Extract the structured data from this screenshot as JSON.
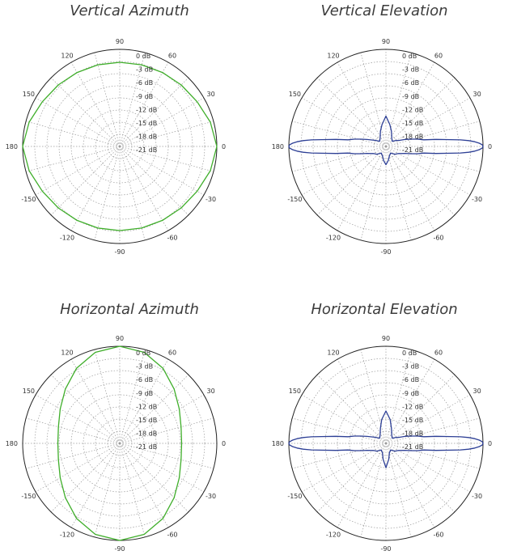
{
  "colors": {
    "azimuth_trace": "#3fae2a",
    "elevation_trace": "#2d3f95",
    "grid": "#9a9a9a",
    "outer_ring": "#222222"
  },
  "chart_data": [
    {
      "type": "polar-line",
      "title": "Vertical Azimuth",
      "angle_ticks": [
        "0",
        "30",
        "60",
        "90",
        "120",
        "150",
        "180",
        "-150",
        "-120",
        "-90",
        "-60",
        "-30"
      ],
      "angle_tick_values": [
        0,
        30,
        60,
        90,
        120,
        150,
        180,
        -150,
        -120,
        -90,
        -60,
        -30
      ],
      "radial_ticks": [
        "0 dB",
        "-3 dB",
        "-6 dB",
        "-9 dB",
        "-12 dB",
        "-15 dB",
        "-18 dB",
        "-21 dB"
      ],
      "rlim_db": [
        -24,
        0
      ],
      "grid": true,
      "series": [
        {
          "color": "#3fae2a",
          "angles_deg": [
            0,
            15,
            30,
            45,
            60,
            75,
            90,
            105,
            120,
            135,
            150,
            165,
            180,
            195,
            210,
            225,
            240,
            255,
            270,
            285,
            300,
            315,
            330,
            345
          ],
          "gain_db": [
            0,
            -0.8,
            -1.9,
            -2.5,
            -2.9,
            -3.1,
            -3.2,
            -3.1,
            -2.9,
            -2.5,
            -1.9,
            -0.8,
            0,
            -0.8,
            -1.9,
            -2.5,
            -2.9,
            -3.1,
            -3.2,
            -3.1,
            -2.9,
            -2.5,
            -1.9,
            -0.8
          ]
        }
      ]
    },
    {
      "type": "polar-line",
      "title": "Vertical Elevation",
      "angle_ticks": [
        "0",
        "30",
        "60",
        "90",
        "120",
        "150",
        "180",
        "-150",
        "-120",
        "-90",
        "-60",
        "-30"
      ],
      "angle_tick_values": [
        0,
        30,
        60,
        90,
        120,
        150,
        180,
        -150,
        -120,
        -90,
        -60,
        -30
      ],
      "radial_ticks": [
        "0 dB",
        "-3 dB",
        "-6 dB",
        "-9 dB",
        "-12 dB",
        "-15 dB",
        "-18 dB",
        "-21 dB"
      ],
      "rlim_db": [
        -24,
        0
      ],
      "grid": true,
      "series": [
        {
          "color": "#2d3f95",
          "angles_deg": [
            0,
            1,
            2,
            3,
            4,
            5,
            6,
            8,
            10,
            13,
            16,
            20,
            25,
            30,
            40,
            55,
            70,
            80,
            90,
            100,
            110,
            125,
            140,
            150,
            160,
            164,
            167,
            170,
            172,
            174,
            175,
            176,
            177,
            178,
            179,
            180,
            181,
            182,
            183,
            184,
            185,
            186,
            188,
            190,
            193,
            196,
            200,
            210,
            220,
            235,
            250,
            260,
            270,
            280,
            290,
            305,
            320,
            330,
            340,
            344,
            347,
            350,
            352,
            354,
            355,
            356,
            357,
            358,
            359
          ],
          "gain_db": [
            0,
            -0.2,
            -0.9,
            -2.0,
            -3.5,
            -5.5,
            -8.0,
            -11.5,
            -14.5,
            -16.0,
            -17.5,
            -19.0,
            -20.5,
            -21.0,
            -22.0,
            -21.5,
            -20.0,
            -18.5,
            -16.5,
            -18.5,
            -20.0,
            -21.5,
            -22.0,
            -21.0,
            -19.0,
            -17.5,
            -16.0,
            -14.5,
            -11.5,
            -8.0,
            -5.5,
            -3.5,
            -2.0,
            -0.9,
            -0.2,
            0,
            -0.2,
            -0.9,
            -2.0,
            -3.5,
            -5.5,
            -8.0,
            -11.5,
            -14.5,
            -16.0,
            -17.5,
            -19.0,
            -20.5,
            -21.0,
            -22.0,
            -21.5,
            -20.5,
            -19.5,
            -20.5,
            -21.5,
            -22.0,
            -21.0,
            -20.5,
            -19.0,
            -17.5,
            -16.0,
            -14.5,
            -11.5,
            -8.0,
            -5.5,
            -3.5,
            -2.0,
            -0.9,
            -0.2
          ]
        }
      ]
    },
    {
      "type": "polar-line",
      "title": "Horizontal Azimuth",
      "angle_ticks": [
        "0",
        "30",
        "60",
        "90",
        "120",
        "150",
        "180",
        "-150",
        "-120",
        "-90",
        "-60",
        "-30"
      ],
      "angle_tick_values": [
        0,
        30,
        60,
        90,
        120,
        150,
        180,
        -150,
        -120,
        -90,
        -60,
        -30
      ],
      "radial_ticks": [
        "0 dB",
        "-3 dB",
        "-6 dB",
        "-9 dB",
        "-12 dB",
        "-15 dB",
        "-18 dB",
        "-21 dB"
      ],
      "rlim_db": [
        -24,
        0
      ],
      "grid": true,
      "series": [
        {
          "color": "#3fae2a",
          "angles_deg": [
            0,
            15,
            30,
            45,
            60,
            75,
            90,
            105,
            120,
            135,
            150,
            165,
            180,
            195,
            210,
            225,
            240,
            255,
            270,
            285,
            300,
            315,
            330,
            345
          ],
          "gain_db": [
            -8.7,
            -8.3,
            -7.0,
            -5.0,
            -2.6,
            -0.7,
            0,
            -0.7,
            -2.6,
            -5.0,
            -7.0,
            -8.3,
            -8.7,
            -8.3,
            -7.0,
            -5.0,
            -2.6,
            -0.7,
            0,
            -0.7,
            -2.6,
            -5.0,
            -7.0,
            -8.3
          ]
        }
      ]
    },
    {
      "type": "polar-line",
      "title": "Horizontal Elevation",
      "angle_ticks": [
        "0",
        "30",
        "60",
        "90",
        "120",
        "150",
        "180",
        "-150",
        "-120",
        "-90",
        "-60",
        "-30"
      ],
      "angle_tick_values": [
        0,
        30,
        60,
        90,
        120,
        150,
        180,
        -150,
        -120,
        -90,
        -60,
        -30
      ],
      "radial_ticks": [
        "0 dB",
        "-3 dB",
        "-6 dB",
        "-9 dB",
        "-12 dB",
        "-15 dB",
        "-18 dB",
        "-21 dB"
      ],
      "rlim_db": [
        -24,
        0
      ],
      "grid": true,
      "series": [
        {
          "color": "#2d3f95",
          "angles_deg": [
            0,
            1,
            2,
            3,
            4,
            5,
            6,
            8,
            10,
            13,
            16,
            20,
            25,
            30,
            40,
            55,
            70,
            80,
            90,
            100,
            110,
            125,
            140,
            150,
            160,
            164,
            167,
            170,
            172,
            174,
            175,
            176,
            177,
            178,
            179,
            180,
            181,
            182,
            183,
            184,
            185,
            186,
            188,
            190,
            193,
            196,
            200,
            210,
            220,
            235,
            250,
            260,
            270,
            280,
            290,
            305,
            320,
            330,
            340,
            344,
            347,
            350,
            352,
            354,
            355,
            356,
            357,
            358,
            359
          ],
          "gain_db": [
            0,
            -0.2,
            -0.9,
            -2.0,
            -3.5,
            -5.5,
            -8.0,
            -11.5,
            -14.5,
            -16.0,
            -17.5,
            -19.0,
            -20.5,
            -21.0,
            -22.0,
            -21.5,
            -20.0,
            -18.0,
            -16.0,
            -18.0,
            -20.0,
            -21.5,
            -22.0,
            -21.0,
            -19.0,
            -17.5,
            -16.0,
            -14.5,
            -11.5,
            -8.0,
            -5.5,
            -3.5,
            -2.0,
            -0.9,
            -0.2,
            0,
            -0.2,
            -0.9,
            -2.0,
            -3.5,
            -5.5,
            -8.0,
            -11.5,
            -14.5,
            -16.0,
            -17.5,
            -19.0,
            -20.5,
            -21.0,
            -22.0,
            -21.5,
            -20.0,
            -18.0,
            -20.0,
            -21.5,
            -22.0,
            -21.0,
            -20.5,
            -19.0,
            -17.5,
            -16.0,
            -14.5,
            -11.5,
            -8.0,
            -5.5,
            -3.5,
            -2.0,
            -0.9,
            -0.2
          ]
        }
      ]
    }
  ]
}
